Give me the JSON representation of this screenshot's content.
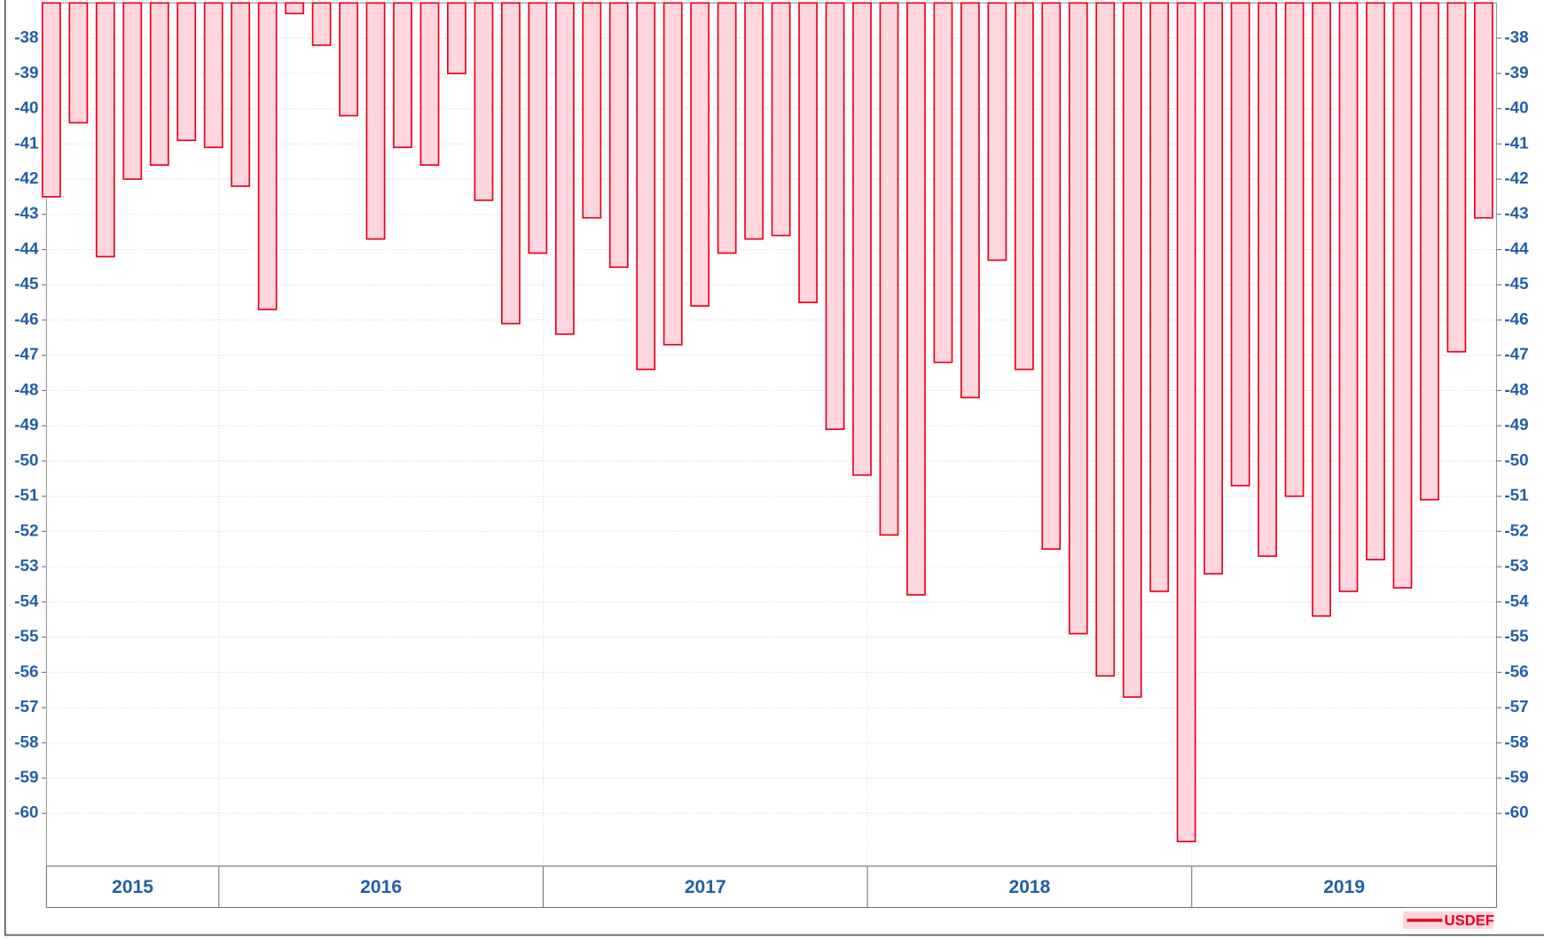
{
  "chart_data": {
    "type": "bar",
    "categories": [
      null,
      null,
      null,
      null,
      null,
      null,
      null,
      null,
      null,
      null,
      null,
      null,
      null,
      null,
      null,
      null,
      null,
      null,
      null,
      null,
      null,
      null,
      null,
      null,
      null,
      null,
      null,
      null,
      null,
      null,
      null,
      null,
      null,
      null,
      null,
      null,
      null,
      null,
      null,
      null,
      null,
      null,
      null,
      null,
      null,
      null,
      null,
      null,
      null,
      null,
      null,
      null,
      null,
      null
    ],
    "x_groups": [
      {
        "label": "2015",
        "count": 7
      },
      {
        "label": "2016",
        "count": 12
      },
      {
        "label": "2017",
        "count": 12
      },
      {
        "label": "2018",
        "count": 12
      },
      {
        "label": "2019",
        "count": 11
      }
    ],
    "series": [
      {
        "name": "USDEF",
        "color": "#e8001c",
        "fill": "#ffd6dd",
        "values": [
          -42.5,
          -40.4,
          -44.2,
          -42.0,
          -41.6,
          -40.9,
          -41.1,
          -42.2,
          -45.7,
          -37.3,
          -38.2,
          -40.2,
          -43.7,
          -41.1,
          -41.6,
          -39.0,
          -42.6,
          -46.1,
          -44.1,
          -46.4,
          -43.1,
          -44.5,
          -47.4,
          -46.7,
          -45.6,
          -44.1,
          -43.7,
          -43.6,
          -45.5,
          -49.1,
          -50.4,
          -52.1,
          -53.8,
          -47.2,
          -48.2,
          -44.3,
          -47.4,
          -52.5,
          -54.9,
          -56.1,
          -56.7,
          -53.7,
          -60.8,
          -53.2,
          -50.7,
          -52.7,
          -51.0,
          -54.4,
          -53.7,
          -52.8,
          -53.6,
          -51.1,
          -46.9,
          -43.1
        ]
      }
    ],
    "ylim": [
      -61.5,
      -37
    ],
    "yticks": [
      -38,
      -39,
      -40,
      -41,
      -42,
      -43,
      -44,
      -45,
      -46,
      -47,
      -48,
      -49,
      -50,
      -51,
      -52,
      -53,
      -54,
      -55,
      -56,
      -57,
      -58,
      -59,
      -60
    ],
    "grid": true,
    "right_axis": true,
    "legend": "bottom-right"
  }
}
